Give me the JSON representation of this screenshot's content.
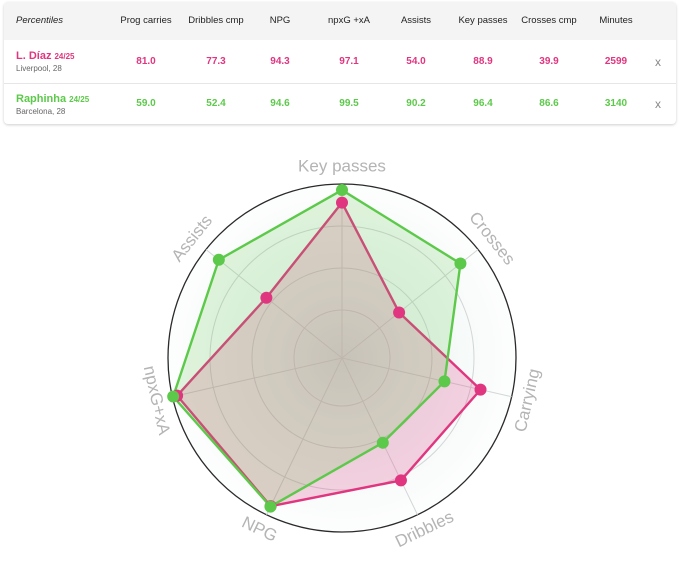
{
  "table": {
    "headers": [
      "Percentiles",
      "Prog carries",
      "Dribbles cmp",
      "NPG",
      "npxG +xA",
      "Assists",
      "Key passes",
      "Crosses cmp",
      "Minutes"
    ],
    "rows": [
      {
        "name": "L. Díaz",
        "season": "24/25",
        "team": "Liverpool, 28",
        "color": "#e0357f",
        "values": [
          "81.0",
          "77.3",
          "94.3",
          "97.1",
          "54.0",
          "88.9",
          "39.9",
          "2599"
        ],
        "remove": "x"
      },
      {
        "name": "Raphinha",
        "season": "24/25",
        "team": "Barcelona, 28",
        "color": "#5cc94a",
        "values": [
          "59.0",
          "52.4",
          "94.6",
          "99.5",
          "90.2",
          "96.4",
          "86.6",
          "3140"
        ],
        "remove": "x"
      }
    ]
  },
  "chart_data": {
    "type": "radar",
    "axes": [
      "Key passes",
      "Crosses",
      "Carrying",
      "Dribbles",
      "NPG",
      "npxG+xA",
      "Assists"
    ],
    "range": [
      0,
      100
    ],
    "series": [
      {
        "name": "L. Díaz",
        "color": "#e0357f",
        "values": [
          88.9,
          39.9,
          81.0,
          77.3,
          94.3,
          97.1,
          54.0
        ]
      },
      {
        "name": "Raphinha",
        "color": "#5cc94a",
        "values": [
          96.4,
          86.6,
          59.0,
          52.4,
          94.6,
          99.5,
          90.2
        ]
      }
    ]
  }
}
